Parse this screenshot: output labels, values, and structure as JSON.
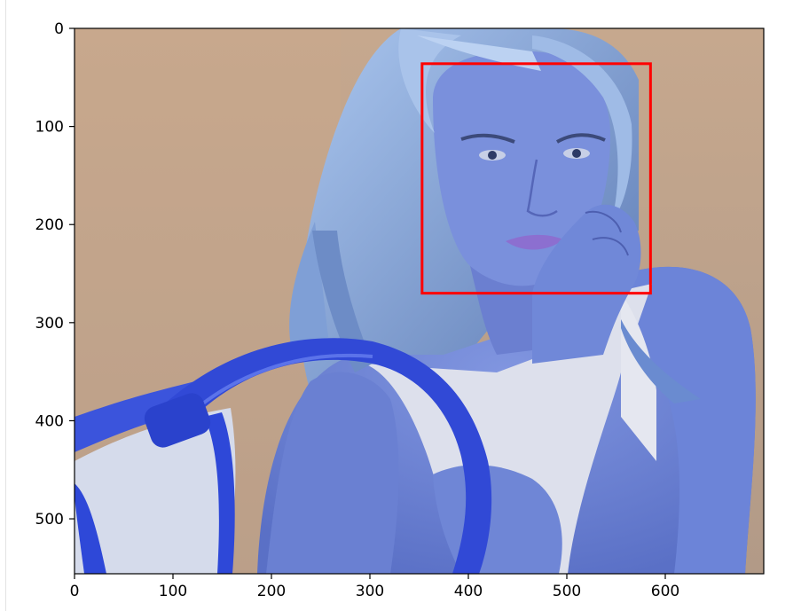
{
  "chart_data": {
    "type": "image",
    "title": "",
    "xlabel": "",
    "ylabel": "",
    "xlim": [
      0,
      700
    ],
    "ylim": [
      556,
      0
    ],
    "x_ticks": [
      0,
      100,
      200,
      300,
      400,
      500,
      600
    ],
    "y_ticks": [
      0,
      100,
      200,
      300,
      400,
      500
    ],
    "grid": false,
    "image": {
      "description_colors": {
        "background_top": "#c6a88e",
        "background_bottom": "#b29a87",
        "skin": "#6b84d6",
        "skin_shadow": "#4d62b8",
        "hair": "#8fb0e0",
        "hair_dark": "#56709f",
        "dress": "#dde0ec",
        "bag": "#2e48d8",
        "bag_light": "#d5dbeb"
      }
    },
    "annotations": [
      {
        "type": "rectangle",
        "x0": 353,
        "y0": 36,
        "x1": 585,
        "y1": 270,
        "color": "#ff0000"
      }
    ]
  }
}
